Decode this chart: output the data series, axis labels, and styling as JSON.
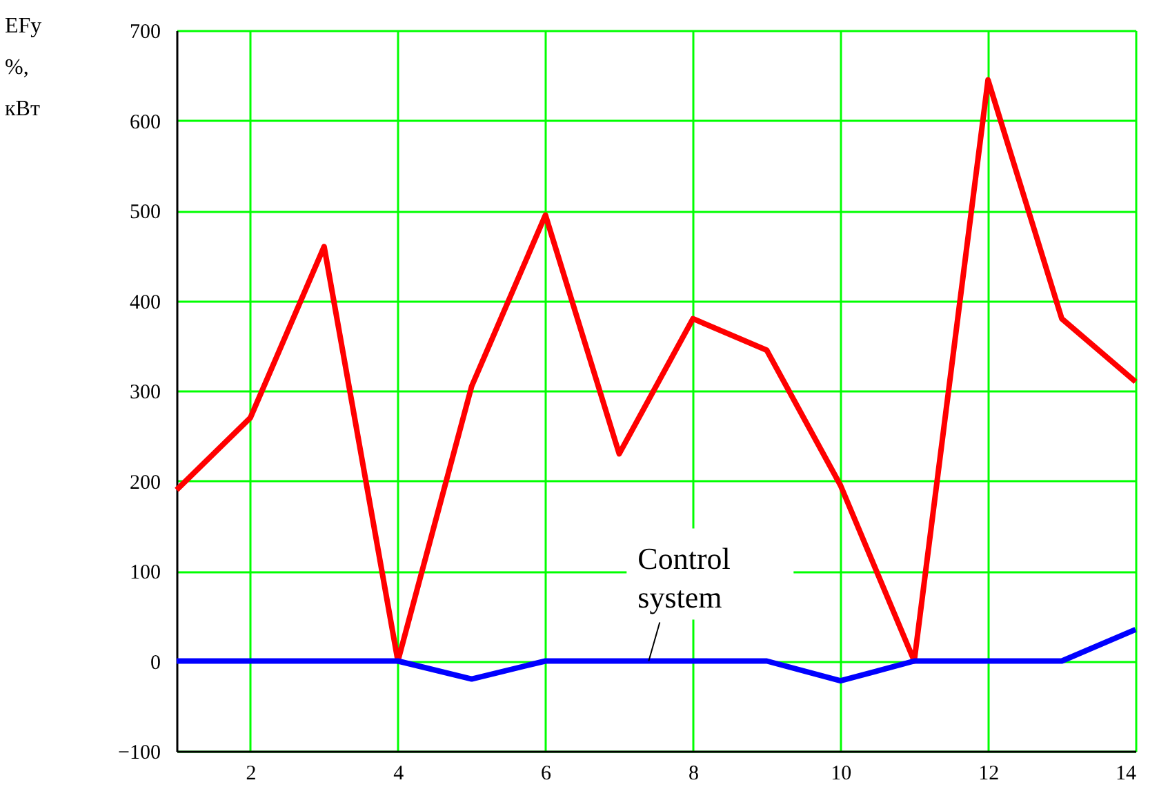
{
  "chart_data": {
    "type": "line",
    "ylabel": "EFy %, кВт",
    "x": [
      1,
      2,
      3,
      4,
      5,
      6,
      7,
      8,
      9,
      10,
      11,
      12,
      13,
      14
    ],
    "series": [
      {
        "color": "#ff0000",
        "values": [
          190,
          270,
          460,
          0,
          305,
          495,
          230,
          380,
          345,
          195,
          0,
          645,
          380,
          310
        ]
      },
      {
        "color": "#0000ff",
        "values": [
          0,
          0,
          0,
          0,
          -20,
          0,
          0,
          0,
          0,
          -22,
          0,
          0,
          0,
          35
        ]
      }
    ],
    "xlim": [
      1,
      14
    ],
    "xticks": [
      2,
      4,
      6,
      8,
      10,
      12,
      14
    ],
    "ylim": [
      -100,
      700
    ],
    "yticks": [
      -100,
      0,
      100,
      200,
      300,
      400,
      500,
      600,
      700
    ],
    "grid": true,
    "marker": "none",
    "line_style": "solid",
    "annotations": [
      {
        "text": "Control system",
        "x": 7.4,
        "y": 0
      }
    ]
  }
}
